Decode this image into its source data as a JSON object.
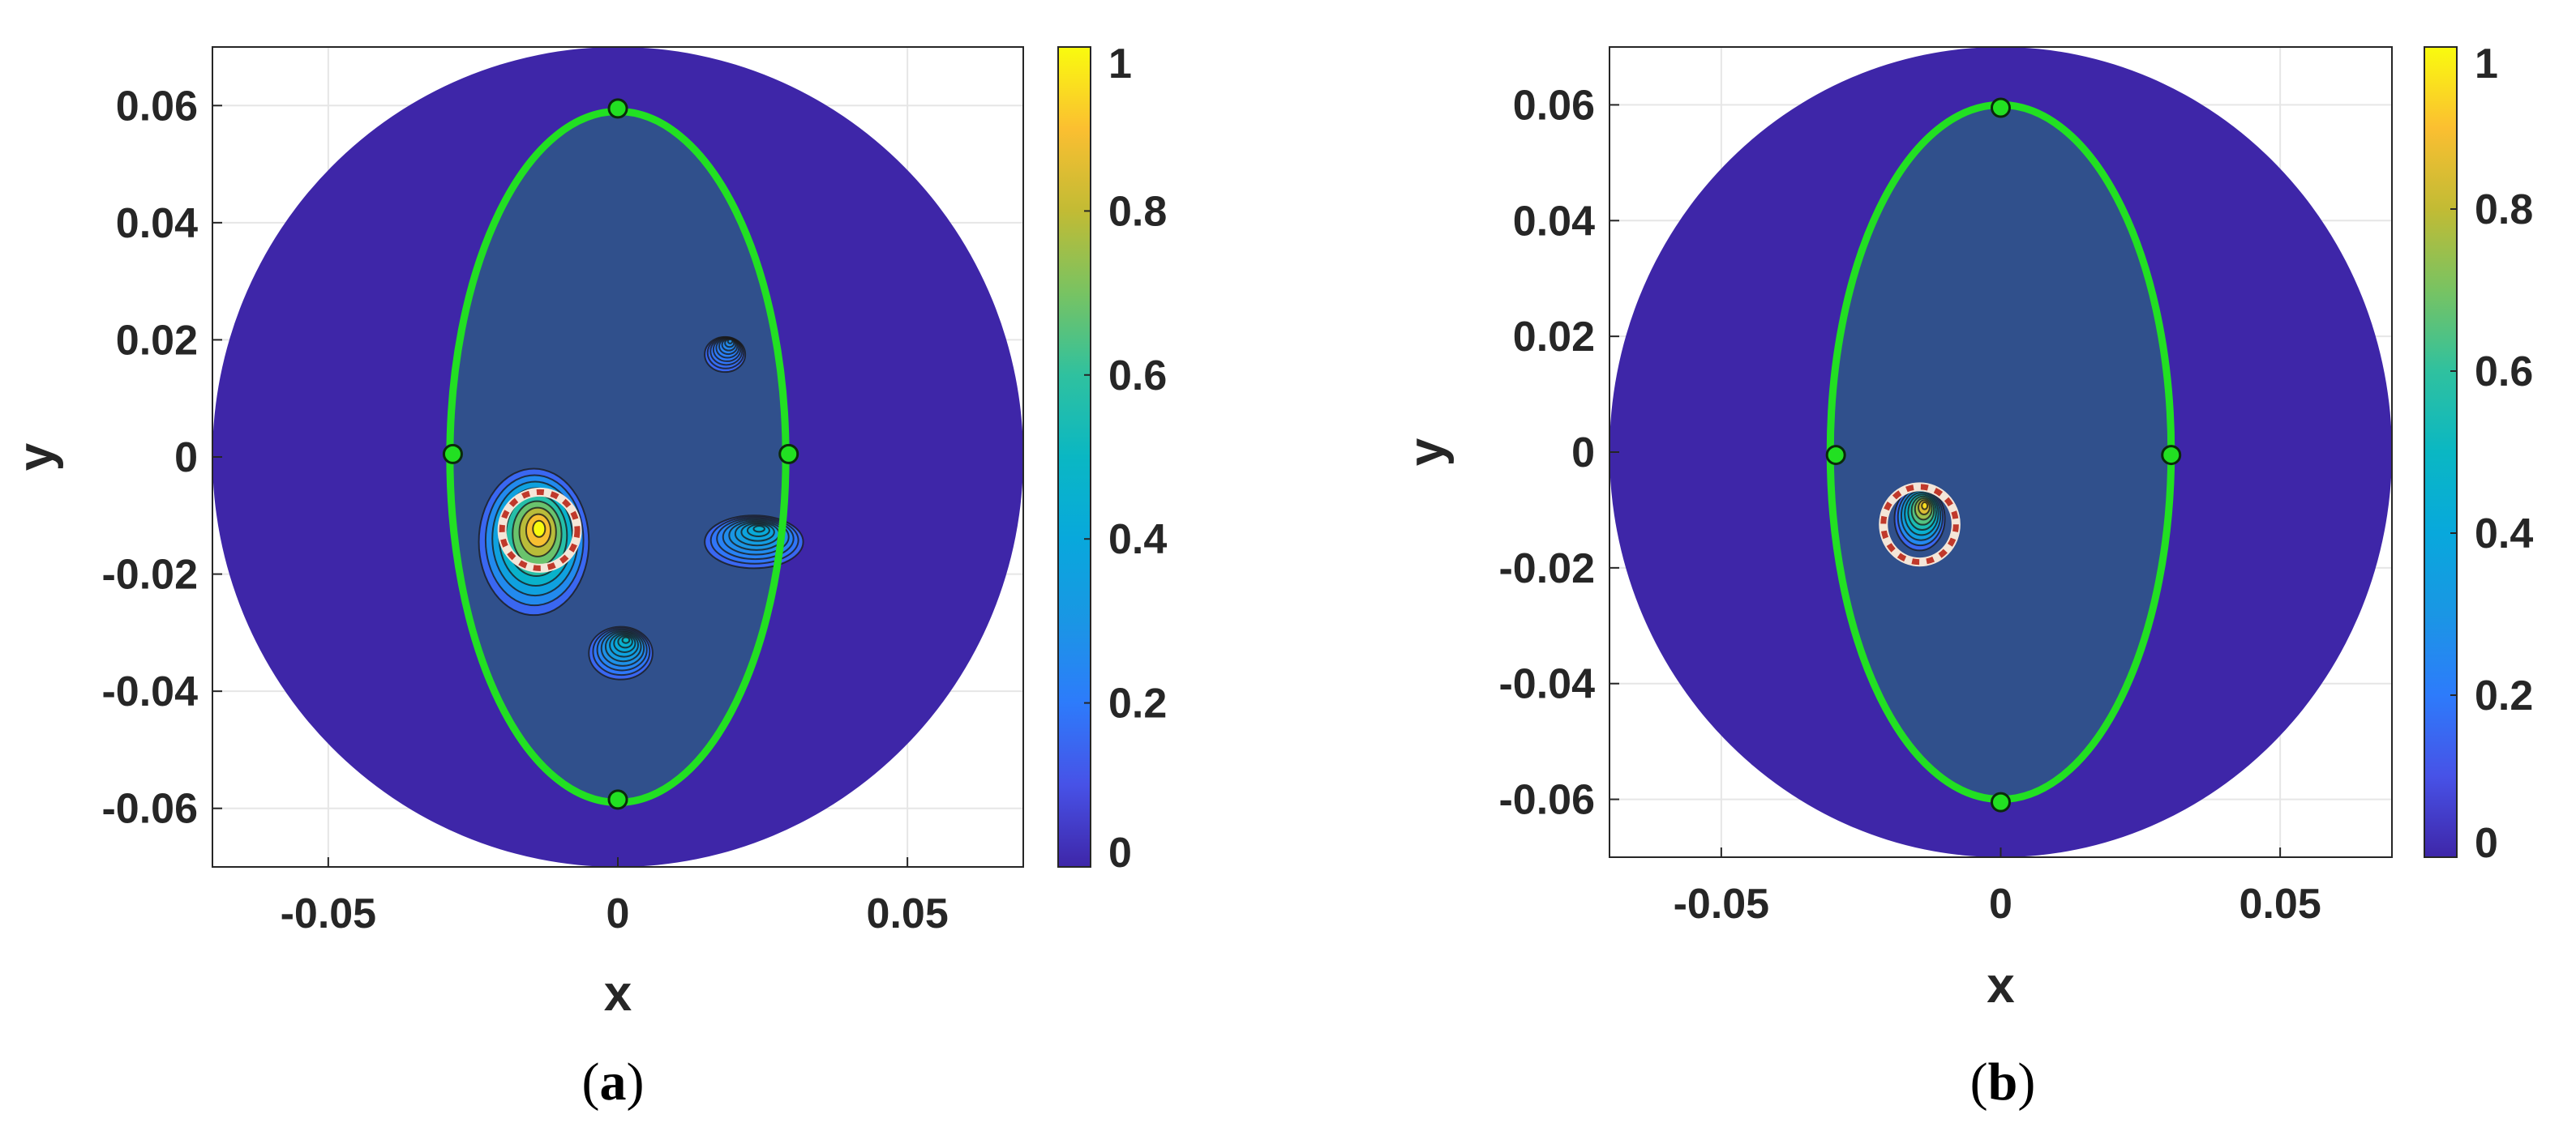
{
  "chart_data": [
    {
      "type": "heatmap",
      "panel": "(a)",
      "caption_letter": "a",
      "xlabel": "x",
      "ylabel": "y",
      "xlim": [
        -0.07,
        0.07
      ],
      "ylim": [
        -0.07,
        0.07
      ],
      "xticks": [
        -0.05,
        0,
        0.05
      ],
      "xtick_labels": [
        "-0.05",
        "0",
        "0.05"
      ],
      "yticks": [
        0.06,
        0.04,
        0.02,
        0,
        -0.02,
        -0.04,
        -0.06
      ],
      "ytick_labels": [
        "0.06",
        "0.04",
        "0.02",
        "0",
        "-0.02",
        "-0.04",
        "-0.06"
      ],
      "grid": true,
      "colormap": "parula",
      "colorbar": {
        "range": [
          0,
          1
        ],
        "ticks": [
          0,
          0.2,
          0.4,
          0.6,
          0.8,
          1
        ],
        "tick_labels": [
          "0",
          "0.2",
          "0.4",
          "0.6",
          "0.8",
          "1"
        ]
      },
      "domain_circle": {
        "center": [
          0,
          0
        ],
        "radius": 0.07,
        "value": 0
      },
      "ellipse": {
        "center": [
          0,
          0
        ],
        "semi_x": 0.029,
        "semi_y": 0.059,
        "color": "#22e022",
        "value": 0.15
      },
      "markers": [
        [
          0,
          0.0595
        ],
        [
          -0.0285,
          0.0005
        ],
        [
          0.0295,
          0.0005
        ],
        [
          0,
          -0.0585
        ]
      ],
      "true_inclusion": {
        "center": [
          -0.0135,
          -0.0125
        ],
        "radius": 0.0065
      },
      "blobs": [
        {
          "x": -0.0145,
          "y": -0.0145,
          "rx": 0.0095,
          "ry": 0.0125,
          "peak": 1.0
        },
        {
          "x": 0.0235,
          "y": -0.0145,
          "rx": 0.0085,
          "ry": 0.0045,
          "peak": 0.45
        },
        {
          "x": 0.0005,
          "y": -0.0335,
          "rx": 0.0055,
          "ry": 0.0045,
          "peak": 0.5
        },
        {
          "x": 0.0185,
          "y": 0.0175,
          "rx": 0.0035,
          "ry": 0.003,
          "peak": 0.28
        }
      ]
    },
    {
      "type": "heatmap",
      "panel": "(b)",
      "caption_letter": "b",
      "xlabel": "x",
      "ylabel": "y",
      "xlim": [
        -0.07,
        0.07
      ],
      "ylim": [
        -0.07,
        0.07
      ],
      "xticks": [
        -0.05,
        0,
        0.05
      ],
      "xtick_labels": [
        "-0.05",
        "0",
        "0.05"
      ],
      "yticks": [
        0.06,
        0.04,
        0.02,
        0,
        -0.02,
        -0.04,
        -0.06
      ],
      "ytick_labels": [
        "0.06",
        "0.04",
        "0.02",
        "0",
        "-0.02",
        "-0.04",
        "-0.06"
      ],
      "grid": true,
      "colormap": "parula",
      "colorbar": {
        "range": [
          0,
          1
        ],
        "ticks": [
          0,
          0.2,
          0.4,
          0.6,
          0.8,
          1
        ],
        "tick_labels": [
          "0",
          "0.2",
          "0.4",
          "0.6",
          "0.8",
          "1"
        ]
      },
      "domain_circle": {
        "center": [
          0,
          0
        ],
        "radius": 0.07,
        "value": 0
      },
      "ellipse": {
        "center": [
          0,
          0
        ],
        "semi_x": 0.0305,
        "semi_y": 0.06,
        "color": "#22e022",
        "value": 0.15
      },
      "markers": [
        [
          0,
          0.0595
        ],
        [
          -0.0295,
          -0.0005
        ],
        [
          0.0305,
          -0.0005
        ],
        [
          0,
          -0.0605
        ]
      ],
      "true_inclusion": {
        "center": [
          -0.0145,
          -0.0125
        ],
        "radius": 0.0065
      },
      "blobs": [
        {
          "x": -0.0145,
          "y": -0.0115,
          "rx": 0.0045,
          "ry": 0.0055,
          "peak": 0.95
        }
      ]
    }
  ]
}
